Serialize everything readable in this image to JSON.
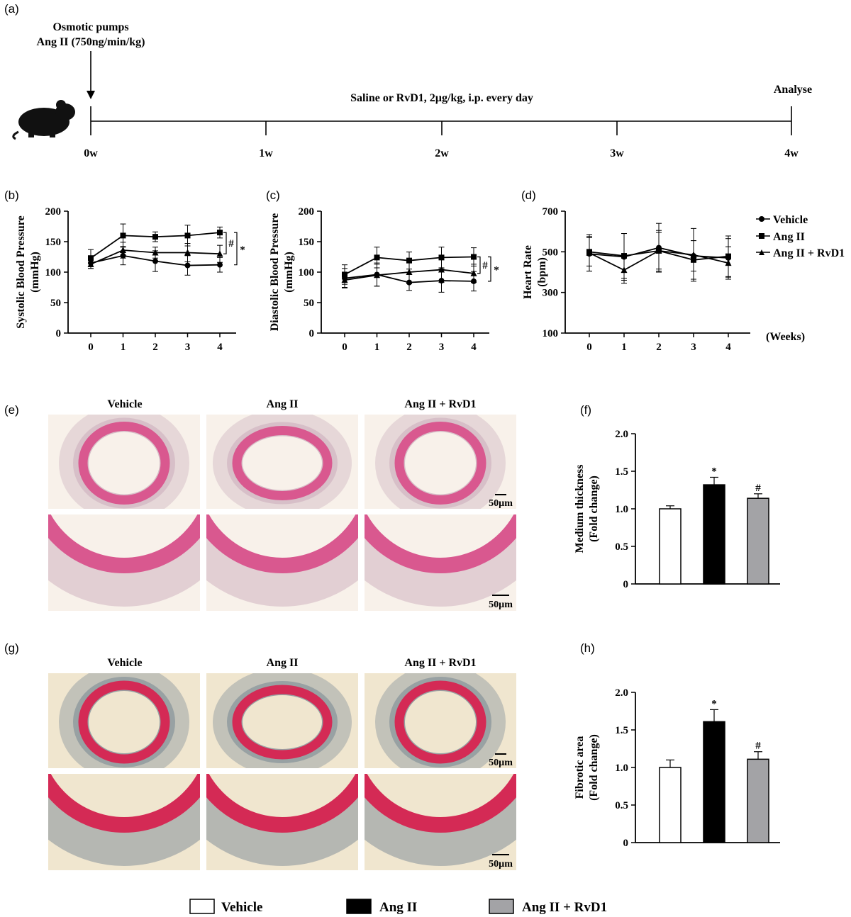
{
  "panels": {
    "a": "(a)",
    "b": "(b)",
    "c": "(c)",
    "d": "(d)",
    "e": "(e)",
    "f": "(f)",
    "g": "(g)",
    "h": "(h)"
  },
  "timeline": {
    "pump_title": "Osmotic pumps",
    "pump_dose": "Ang II (750ng/min/kg)",
    "treatment": "Saline or RvD1, 2µg/kg, i.p. every day",
    "end_label": "Analyse",
    "ticks": [
      "0w",
      "1w",
      "2w",
      "3w",
      "4w"
    ]
  },
  "line_legend": [
    "Vehicle",
    "Ang II",
    "Ang II + RvD1"
  ],
  "weeks_label": "(Weeks)",
  "histology": {
    "columns": [
      "Vehicle",
      "Ang II",
      "Ang II + RvD1"
    ],
    "scale_bar": "50µm",
    "he_colors": {
      "background": "#f8f1ea",
      "wall": "#d9588f",
      "adventitia": "#c7a7b7"
    },
    "sirius_colors": {
      "background": "#f0e6cf",
      "wall": "#d42a55",
      "collagen": "#6d7f8e"
    }
  },
  "bar_legend": [
    {
      "label": "Vehicle",
      "color": "#ffffff"
    },
    {
      "label": "Ang II",
      "color": "#000000"
    },
    {
      "label": "Ang II + RvD1",
      "color": "#a3a3a6"
    }
  ],
  "chart_data": [
    {
      "id": "b",
      "type": "line",
      "ylabel": "Systolic Blood Pressure (mmHg)",
      "x": [
        0,
        1,
        2,
        3,
        4
      ],
      "xticks": [
        "0",
        "1",
        "2",
        "3",
        "4"
      ],
      "ylim": [
        0,
        200
      ],
      "yticks": [
        0,
        50,
        100,
        150,
        200
      ],
      "series": [
        {
          "name": "Vehicle",
          "marker": "circle",
          "values": [
            115,
            127,
            118,
            111,
            112
          ],
          "errors": [
            9,
            15,
            17,
            16,
            12
          ]
        },
        {
          "name": "Ang II",
          "marker": "square",
          "values": [
            123,
            160,
            158,
            160,
            165
          ],
          "errors": [
            14,
            19,
            8,
            17,
            9
          ]
        },
        {
          "name": "Ang II + RvD1",
          "marker": "triangle",
          "values": [
            113,
            136,
            132,
            132,
            130
          ],
          "errors": [
            7,
            13,
            9,
            15,
            14
          ]
        }
      ],
      "annotations": [
        "#",
        "*"
      ]
    },
    {
      "id": "c",
      "type": "line",
      "ylabel": "Diastolic Blood Pressure (mmHg)",
      "x": [
        0,
        1,
        2,
        3,
        4
      ],
      "xticks": [
        "0",
        "1",
        "2",
        "3",
        "4"
      ],
      "ylim": [
        0,
        200
      ],
      "yticks": [
        0,
        50,
        100,
        150,
        200
      ],
      "series": [
        {
          "name": "Vehicle",
          "marker": "circle",
          "values": [
            90,
            96,
            83,
            86,
            85
          ],
          "errors": [
            16,
            19,
            13,
            19,
            16
          ]
        },
        {
          "name": "Ang II",
          "marker": "square",
          "values": [
            96,
            124,
            119,
            124,
            125
          ],
          "errors": [
            16,
            17,
            14,
            17,
            15
          ]
        },
        {
          "name": "Ang II + RvD1",
          "marker": "triangle",
          "values": [
            87,
            95,
            100,
            104,
            98
          ],
          "errors": [
            12,
            18,
            19,
            21,
            15
          ]
        }
      ],
      "annotations": [
        "#",
        "*"
      ]
    },
    {
      "id": "d",
      "type": "line",
      "ylabel": "Heart Rate (bpm)",
      "x": [
        0,
        1,
        2,
        3,
        4
      ],
      "xticks": [
        "0",
        "1",
        "2",
        "3",
        "4"
      ],
      "ylim": [
        100,
        700
      ],
      "yticks": [
        100,
        300,
        500,
        700
      ],
      "series": [
        {
          "name": "Vehicle",
          "marker": "circle",
          "values": [
            490,
            475,
            520,
            480,
            470
          ],
          "errors": [
            85,
            115,
            120,
            75,
            95
          ]
        },
        {
          "name": "Ang II",
          "marker": "square",
          "values": [
            500,
            480,
            505,
            460,
            478
          ],
          "errors": [
            70,
            110,
            90,
            95,
            100
          ]
        },
        {
          "name": "Ang II + RvD1",
          "marker": "triangle",
          "values": [
            495,
            410,
            505,
            485,
            445
          ],
          "errors": [
            90,
            65,
            100,
            130,
            80
          ]
        }
      ]
    },
    {
      "id": "f",
      "type": "bar",
      "ylabel": "Medium thickness (Fold change)",
      "categories": [
        "Vehicle",
        "Ang II",
        "Ang II + RvD1"
      ],
      "values": [
        1.0,
        1.32,
        1.14
      ],
      "errors": [
        0.04,
        0.1,
        0.06
      ],
      "marks": [
        "",
        "*",
        "#"
      ],
      "ylim": [
        0,
        2.0
      ],
      "yticks": [
        "0",
        "0.5",
        "1.0",
        "1.5",
        "2.0"
      ]
    },
    {
      "id": "h",
      "type": "bar",
      "ylabel": "Fibrotic area (Fold change)",
      "categories": [
        "Vehicle",
        "Ang II",
        "Ang II + RvD1"
      ],
      "values": [
        1.0,
        1.61,
        1.11
      ],
      "errors": [
        0.1,
        0.16,
        0.1
      ],
      "marks": [
        "",
        "*",
        "#"
      ],
      "ylim": [
        0,
        2.0
      ],
      "yticks": [
        "0",
        "0.5",
        "1.0",
        "1.5",
        "2.0"
      ]
    }
  ]
}
